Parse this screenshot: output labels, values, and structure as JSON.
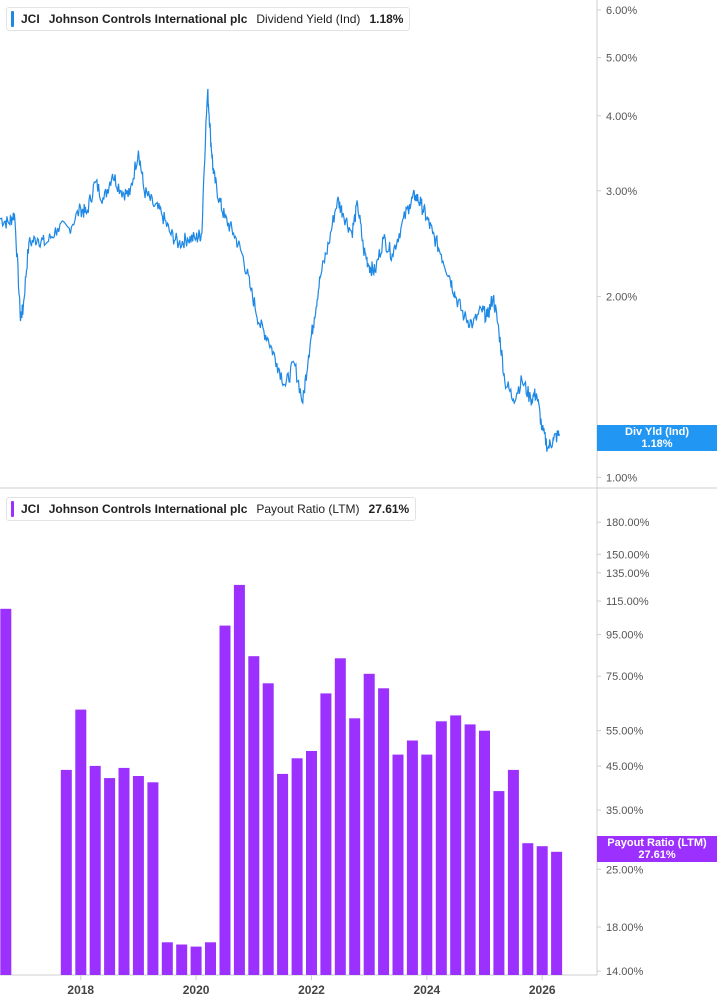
{
  "colors": {
    "yield_line": "#1e88e5",
    "yield_flag": "#2196f3",
    "payout_bar": "#9b30ff",
    "axis": "#cfcfcf",
    "tick_text": "#555555"
  },
  "legend_top": {
    "symbol": "JCI",
    "company": "Johnson Controls International plc",
    "metric": "Dividend Yield (Ind)",
    "value": "1.18%"
  },
  "legend_bottom": {
    "symbol": "JCI",
    "company": "Johnson Controls International plc",
    "metric": "Payout Ratio (LTM)",
    "value": "27.61%"
  },
  "flag_top": {
    "line1": "Div Yld (Ind)",
    "line2": "1.18%"
  },
  "flag_bottom": {
    "line1": "Payout Ratio (LTM)",
    "line2": "27.61%"
  },
  "x_axis": {
    "ticks": [
      "2018",
      "2020",
      "2022",
      "2024",
      "2026"
    ],
    "tick_values": [
      2018,
      2020,
      2022,
      2024,
      2026
    ]
  },
  "chart_data": [
    {
      "type": "line",
      "title": "Dividend Yield (Ind)",
      "scale": "log",
      "ylim": [
        0.99,
        6.0
      ],
      "y_ticks": [
        "6.00%",
        "5.00%",
        "4.00%",
        "3.00%",
        "2.00%",
        "1.00%"
      ],
      "y_tick_values": [
        6.0,
        5.0,
        4.0,
        3.0,
        2.0,
        1.0
      ],
      "series": [
        {
          "name": "Div Yld (Ind)",
          "x": [
            2016.6,
            2016.75,
            2016.85,
            2016.95,
            2017.0,
            2017.1,
            2017.25,
            2017.4,
            2017.6,
            2017.8,
            2018.0,
            2018.1,
            2018.25,
            2018.4,
            2018.55,
            2018.7,
            2018.85,
            2019.0,
            2019.1,
            2019.25,
            2019.4,
            2019.55,
            2019.7,
            2019.85,
            2020.0,
            2020.1,
            2020.2,
            2020.25,
            2020.3,
            2020.4,
            2020.5,
            2020.65,
            2020.8,
            2020.95,
            2021.1,
            2021.25,
            2021.4,
            2021.55,
            2021.7,
            2021.85,
            2021.95,
            2022.05,
            2022.15,
            2022.3,
            2022.45,
            2022.55,
            2022.7,
            2022.8,
            2022.9,
            2023.0,
            2023.1,
            2023.25,
            2023.4,
            2023.55,
            2023.7,
            2023.8,
            2023.9,
            2024.0,
            2024.1,
            2024.25,
            2024.4,
            2024.5,
            2024.65,
            2024.8,
            2024.95,
            2025.05,
            2025.15,
            2025.25,
            2025.35,
            2025.5,
            2025.65,
            2025.8,
            2025.9,
            2026.0,
            2026.1,
            2026.2,
            2026.3
          ],
          "y": [
            2.7,
            2.65,
            2.75,
            1.85,
            1.9,
            2.45,
            2.5,
            2.45,
            2.6,
            2.6,
            2.8,
            2.75,
            3.1,
            2.9,
            3.2,
            3.0,
            2.95,
            3.5,
            3.0,
            2.85,
            2.75,
            2.55,
            2.45,
            2.5,
            2.5,
            2.55,
            4.4,
            3.7,
            3.2,
            2.9,
            2.7,
            2.55,
            2.35,
            2.05,
            1.8,
            1.7,
            1.55,
            1.42,
            1.55,
            1.33,
            1.6,
            1.85,
            2.15,
            2.45,
            2.9,
            2.75,
            2.55,
            2.85,
            2.4,
            2.25,
            2.2,
            2.5,
            2.35,
            2.6,
            2.85,
            2.95,
            2.85,
            2.7,
            2.55,
            2.35,
            2.15,
            2.0,
            1.85,
            1.8,
            1.9,
            1.85,
            2.0,
            1.75,
            1.45,
            1.35,
            1.45,
            1.35,
            1.38,
            1.2,
            1.12,
            1.16,
            1.18
          ]
        }
      ]
    },
    {
      "type": "bar",
      "title": "Payout Ratio (LTM)",
      "scale": "log",
      "ylim": [
        13.7,
        215
      ],
      "y_ticks": [
        "180.00%",
        "150.00%",
        "135.00%",
        "115.00%",
        "95.00%",
        "75.00%",
        "55.00%",
        "45.00%",
        "35.00%",
        "25.00%",
        "18.00%",
        "14.00%"
      ],
      "y_tick_values": [
        180,
        150,
        135,
        115,
        95,
        75,
        55,
        45,
        35,
        25,
        18,
        14
      ],
      "series": [
        {
          "name": "Payout Ratio (LTM)",
          "x": [
            2016.7,
            2017.75,
            2018.0,
            2018.25,
            2018.5,
            2018.75,
            2019.0,
            2019.25,
            2019.5,
            2019.75,
            2020.0,
            2020.25,
            2020.5,
            2020.75,
            2021.0,
            2021.25,
            2021.5,
            2021.75,
            2022.0,
            2022.25,
            2022.5,
            2022.75,
            2023.0,
            2023.25,
            2023.5,
            2023.75,
            2024.0,
            2024.25,
            2024.5,
            2024.75,
            2025.0,
            2025.25,
            2025.5,
            2025.75,
            2026.0,
            2026.25
          ],
          "values": [
            110,
            44,
            62,
            45,
            42,
            44.5,
            42.5,
            41,
            16.5,
            16.3,
            16.1,
            16.5,
            100,
            126,
            84,
            72,
            43,
            47,
            49,
            68,
            83,
            59,
            76,
            70,
            48,
            52,
            48,
            58,
            60,
            57,
            55,
            39,
            44,
            29,
            28.5,
            27.61
          ]
        }
      ]
    }
  ]
}
